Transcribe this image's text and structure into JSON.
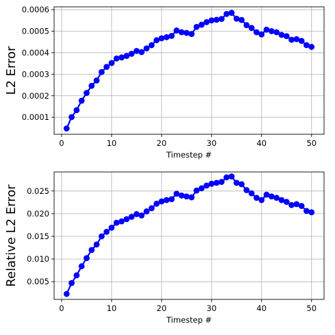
{
  "chart_data": [
    {
      "type": "line",
      "xlabel": "Timestep #",
      "ylabel": "L2 Error",
      "xlim": [
        -1.5,
        52.5
      ],
      "ylim": [
        2.1e-05,
        0.000613
      ],
      "xticks": [
        0,
        10,
        20,
        30,
        40,
        50
      ],
      "xtick_labels": [
        "0",
        "10",
        "20",
        "30",
        "40",
        "50"
      ],
      "yticks": [
        0.0001,
        0.0002,
        0.0003,
        0.0004,
        0.0005,
        0.0006
      ],
      "ytick_labels": [
        "0.0001",
        "0.0002",
        "0.0003",
        "0.0004",
        "0.0005",
        "0.0006"
      ],
      "grid": true,
      "x": [
        1,
        2,
        3,
        4,
        5,
        6,
        7,
        8,
        9,
        10,
        11,
        12,
        13,
        14,
        15,
        16,
        17,
        18,
        19,
        20,
        21,
        22,
        23,
        24,
        25,
        26,
        27,
        28,
        29,
        30,
        31,
        32,
        33,
        34,
        35,
        36,
        37,
        38,
        39,
        40,
        41,
        42,
        43,
        44,
        45,
        46,
        47,
        48,
        49,
        50
      ],
      "series": [
        {
          "color": "#0000ff",
          "marker": "circle",
          "values": [
            4.8e-05,
            0.000101,
            0.000133,
            0.000177,
            0.000213,
            0.000246,
            0.000271,
            0.00031,
            0.000334,
            0.000352,
            0.000373,
            0.000378,
            0.000385,
            0.000395,
            0.000408,
            0.000403,
            0.00042,
            0.000435,
            0.000458,
            0.000467,
            0.000472,
            0.000478,
            0.000503,
            0.000495,
            0.000492,
            0.000487,
            0.00052,
            0.00053,
            0.000542,
            0.00055,
            0.000553,
            0.000557,
            0.00058,
            0.000585,
            0.000558,
            0.000552,
            0.000528,
            0.000515,
            0.000495,
            0.000485,
            0.000507,
            0.0005,
            0.000495,
            0.000483,
            0.000477,
            0.00046,
            0.000463,
            0.000455,
            0.000435,
            0.000427
          ]
        }
      ]
    },
    {
      "type": "line",
      "xlabel": "Timestep #",
      "ylabel": "Relative L2 Error",
      "xlim": [
        -1.5,
        52.5
      ],
      "ylim": [
        0.0011,
        0.0292
      ],
      "xticks": [
        0,
        10,
        20,
        30,
        40,
        50
      ],
      "xtick_labels": [
        "0",
        "10",
        "20",
        "30",
        "40",
        "50"
      ],
      "yticks": [
        0.005,
        0.01,
        0.015,
        0.02,
        0.025
      ],
      "ytick_labels": [
        "0.005",
        "0.010",
        "0.015",
        "0.020",
        "0.025"
      ],
      "grid": true,
      "x": [
        1,
        2,
        3,
        4,
        5,
        6,
        7,
        8,
        9,
        10,
        11,
        12,
        13,
        14,
        15,
        16,
        17,
        18,
        19,
        20,
        21,
        22,
        23,
        24,
        25,
        26,
        27,
        28,
        29,
        30,
        31,
        32,
        33,
        34,
        35,
        36,
        37,
        38,
        39,
        40,
        41,
        42,
        43,
        44,
        45,
        46,
        47,
        48,
        49,
        50
      ],
      "series": [
        {
          "color": "#0000ff",
          "marker": "circle",
          "values": [
            0.0023,
            0.0047,
            0.0064,
            0.0084,
            0.0102,
            0.012,
            0.0132,
            0.015,
            0.016,
            0.0169,
            0.018,
            0.0183,
            0.0188,
            0.0193,
            0.0199,
            0.0196,
            0.0205,
            0.0212,
            0.0222,
            0.0227,
            0.023,
            0.0232,
            0.0244,
            0.024,
            0.0238,
            0.0236,
            0.0251,
            0.0256,
            0.0262,
            0.0266,
            0.0268,
            0.027,
            0.028,
            0.0282,
            0.0268,
            0.0265,
            0.0252,
            0.0245,
            0.0235,
            0.023,
            0.0242,
            0.0238,
            0.0235,
            0.023,
            0.0226,
            0.0219,
            0.0221,
            0.0217,
            0.0206,
            0.0203
          ]
        }
      ]
    }
  ]
}
